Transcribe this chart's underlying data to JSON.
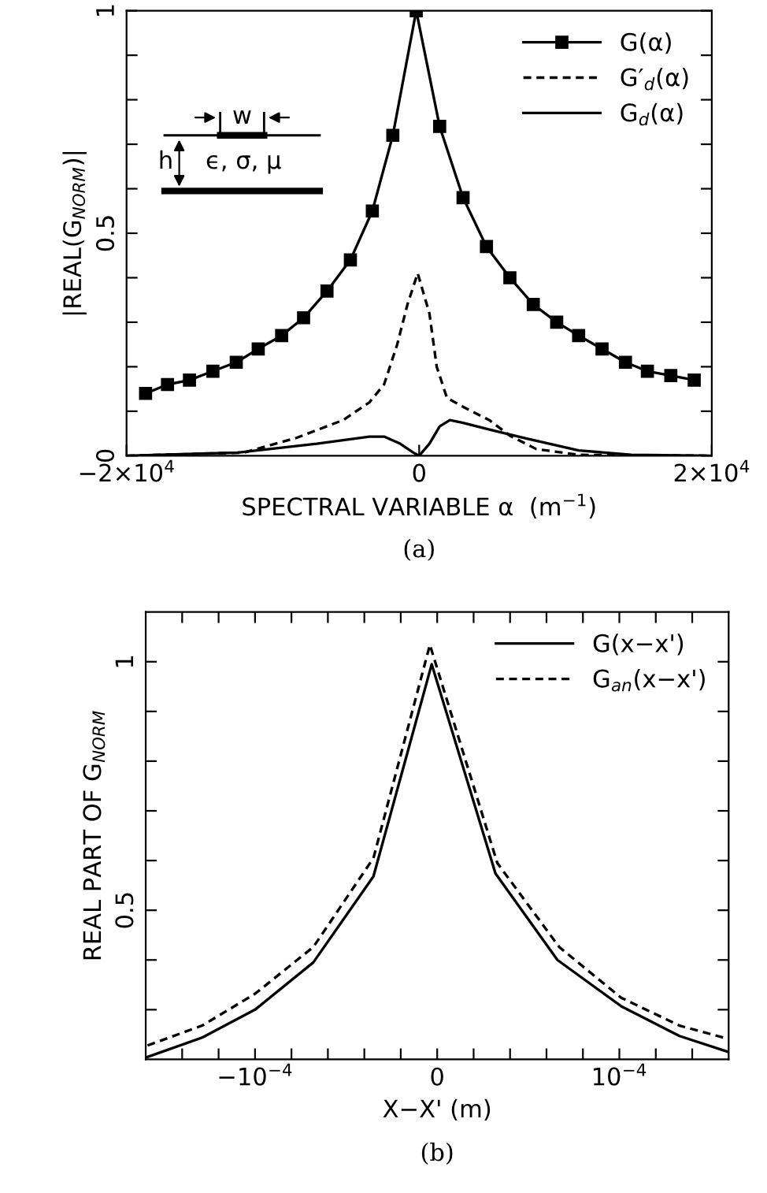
{
  "chart_data": [
    {
      "type": "line",
      "ylabel": "|REAL(G$_{NORM}$)|",
      "xlabel": "SPECTRAL VARIABLE α  (m$^{−1}$)",
      "annotations": [
        "(a)",
        "w",
        "h",
        "ϵ, σ, μ"
      ],
      "xlim": [
        -20000,
        20000
      ],
      "ylim": [
        0,
        1
      ],
      "xticks": [
        {
          "value": -20000,
          "label": "−2×10$^{4}$"
        },
        0,
        {
          "value": 20000,
          "label": "2×10$^{4}$"
        }
      ],
      "yticks": [
        0,
        {
          "value": 0.1,
          "label": null
        },
        {
          "value": 0.2,
          "label": null
        },
        {
          "value": 0.3,
          "label": null
        },
        {
          "value": 0.4,
          "label": null
        },
        0.5,
        {
          "value": 0.6,
          "label": null
        },
        {
          "value": 0.7,
          "label": null
        },
        {
          "value": 0.8,
          "label": null
        },
        {
          "value": 0.9,
          "label": null
        },
        1
      ],
      "grid": false,
      "legend": "top right",
      "series": [
        {
          "name": "G(α)",
          "color": "#000000",
          "marker": "square",
          "line_style": "solid",
          "x": [
            -18700,
            -17200,
            -15700,
            -14100,
            -12500,
            -11000,
            -9400,
            -7900,
            -6300,
            -4700,
            -3200,
            -1800,
            -200,
            1400,
            3000,
            4600,
            6200,
            7800,
            9400,
            10900,
            12500,
            14100,
            15600,
            17200,
            18800
          ],
          "values": [
            0.14,
            0.16,
            0.17,
            0.19,
            0.21,
            0.24,
            0.27,
            0.31,
            0.37,
            0.44,
            0.55,
            0.72,
            1.0,
            0.74,
            0.58,
            0.47,
            0.4,
            0.34,
            0.3,
            0.27,
            0.24,
            0.21,
            0.19,
            0.18,
            0.17
          ]
        },
        {
          "name": "G′$_{d}$(α)",
          "color": "#000000",
          "marker": "none",
          "line_style": "dashed",
          "x": [
            -20000,
            -12000,
            -8400,
            -5200,
            -3400,
            -2400,
            -1500,
            -800,
            -100,
            700,
            1200,
            1900,
            3000,
            4800,
            6200,
            8000,
            10900,
            20000
          ],
          "values": [
            0.0,
            0.007,
            0.04,
            0.08,
            0.12,
            0.16,
            0.25,
            0.34,
            0.41,
            0.32,
            0.2,
            0.13,
            0.11,
            0.08,
            0.045,
            0.015,
            0.002,
            0.0
          ]
        },
        {
          "name": "G$_{d}$(α)",
          "color": "#000000",
          "marker": "none",
          "line_style": "solid",
          "x": [
            -20000,
            -12400,
            -7000,
            -3400,
            -2400,
            -1300,
            -400,
            0,
            700,
            1400,
            2100,
            3000,
            4800,
            7300,
            10900,
            14500,
            20000
          ],
          "values": [
            0.0,
            0.007,
            0.027,
            0.043,
            0.043,
            0.027,
            0.007,
            0.0,
            0.027,
            0.066,
            0.08,
            0.074,
            0.059,
            0.039,
            0.012,
            0.002,
            0.0
          ]
        }
      ]
    },
    {
      "type": "line",
      "ylabel": "REAL PART OF G$_{NORM}$",
      "xlabel": "X−X' (m)",
      "annotations": [
        "(b)"
      ],
      "xlim": [
        -0.00016,
        0.00016
      ],
      "ylim": [
        0.2,
        1.1
      ],
      "xticks": [
        {
          "value": -0.00014,
          "label": null
        },
        {
          "value": -0.00012,
          "label": null
        },
        {
          "value": -0.0001,
          "label": "−10$^{−4}$"
        },
        {
          "value": -8e-05,
          "label": null
        },
        {
          "value": -6e-05,
          "label": null
        },
        {
          "value": -4e-05,
          "label": null
        },
        {
          "value": -2e-05,
          "label": null
        },
        0,
        {
          "value": 2e-05,
          "label": null
        },
        {
          "value": 4e-05,
          "label": null
        },
        {
          "value": 6e-05,
          "label": null
        },
        {
          "value": 8e-05,
          "label": null
        },
        {
          "value": 0.0001,
          "label": "10$^{−4}$"
        },
        {
          "value": 0.00012,
          "label": null
        },
        {
          "value": 0.00014,
          "label": null
        }
      ],
      "yticks": [
        {
          "value": 0.3,
          "label": null
        },
        {
          "value": 0.4,
          "label": null
        },
        0.5,
        {
          "value": 0.6,
          "label": null
        },
        {
          "value": 0.7,
          "label": null
        },
        {
          "value": 0.8,
          "label": null
        },
        {
          "value": 0.9,
          "label": null
        },
        1
      ],
      "grid": false,
      "legend": "top right",
      "series": [
        {
          "name": "G(x−x')",
          "color": "#000000",
          "marker": "none",
          "line_style": "solid",
          "x": [
            -0.000159,
            -0.000129,
            -0.0001,
            -6.8e-05,
            -3.5e-05,
            -3e-06,
            3.2e-05,
            6.6e-05,
            0.000101,
            0.000133,
            0.000159
          ],
          "values": [
            0.205,
            0.244,
            0.3,
            0.395,
            0.568,
            0.995,
            0.574,
            0.4,
            0.307,
            0.247,
            0.216
          ]
        },
        {
          "name": "G$_{an}$(x−x')",
          "color": "#000000",
          "marker": "none",
          "line_style": "dashed",
          "x": [
            -0.000159,
            -0.000129,
            -0.0001,
            -6.8e-05,
            -3.5e-05,
            -4e-06,
            3.3e-05,
            6.7e-05,
            0.000101,
            0.000133,
            0.000159
          ],
          "values": [
            0.228,
            0.268,
            0.332,
            0.426,
            0.605,
            1.034,
            0.595,
            0.426,
            0.324,
            0.268,
            0.242
          ]
        }
      ]
    }
  ]
}
